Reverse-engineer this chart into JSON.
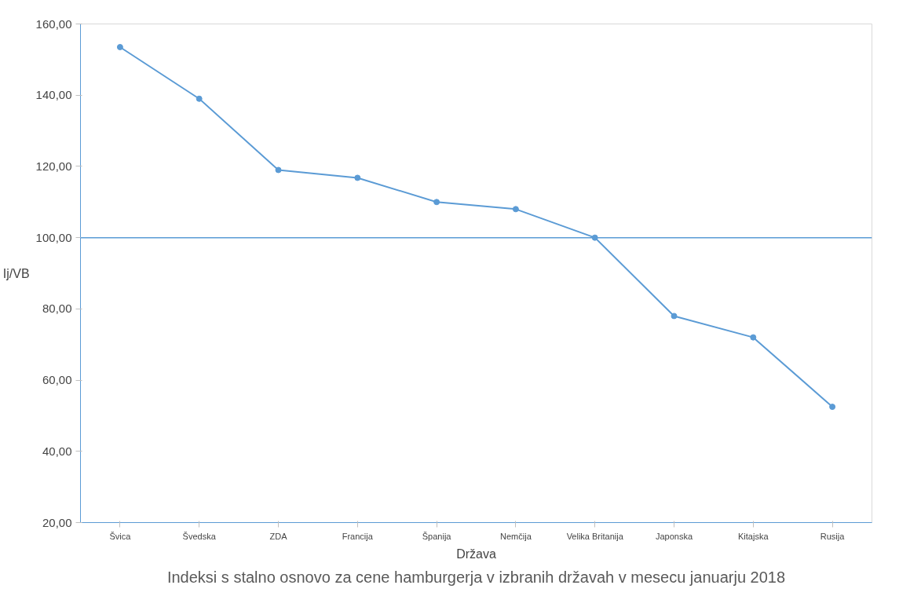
{
  "chart_data": {
    "type": "line",
    "title": "Indeksi s stalno osnovo za cene hamburgerja v izbranih državah v mesecu januarju 2018",
    "xlabel": "Država",
    "ylabel": "Ij/VB",
    "categories": [
      "Švica",
      "Švedska",
      "ZDA",
      "Francija",
      "Španija",
      "Nemčija",
      "Velika Britanija",
      "Japonska",
      "Kitajska",
      "Rusija"
    ],
    "series": [
      {
        "color": "#5b9bd5",
        "values": [
          153.5,
          139,
          119,
          116.8,
          110,
          108,
          100,
          78,
          72,
          52.5
        ]
      }
    ],
    "ylim": [
      20,
      160
    ],
    "yticks": [
      {
        "value": 20,
        "label": "20,00"
      },
      {
        "value": 40,
        "label": "40,00"
      },
      {
        "value": 60,
        "label": "60,00"
      },
      {
        "value": 80,
        "label": "80,00"
      },
      {
        "value": 100,
        "label": "100,00"
      },
      {
        "value": 120,
        "label": "120,00"
      },
      {
        "value": 140,
        "label": "140,00"
      },
      {
        "value": 160,
        "label": "160,00"
      }
    ],
    "ref_lines": [
      {
        "axis": "y",
        "value": 100,
        "color": "#5b9bd5"
      }
    ],
    "marker": "circle",
    "line_style": "solid",
    "grid": false
  }
}
